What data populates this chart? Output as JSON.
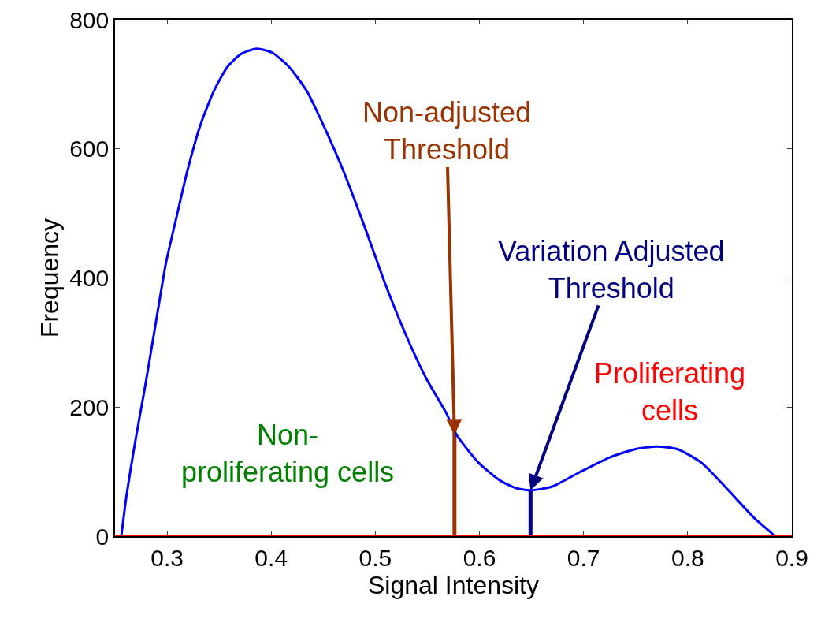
{
  "chart_data": {
    "type": "line",
    "xlabel": "Signal Intensity",
    "ylabel": "Frequency",
    "xlim": [
      0.25,
      0.9
    ],
    "xticks": [
      0.3,
      0.4,
      0.5,
      0.6,
      0.7,
      0.8,
      0.9
    ],
    "ylim": [
      0,
      800
    ],
    "yticks": [
      0,
      200,
      400,
      600,
      800
    ],
    "grid": false,
    "marker": "none",
    "line_style": "solid",
    "series": [
      {
        "color": "#0000ff",
        "x": [
          0.256,
          0.261,
          0.269,
          0.279,
          0.289,
          0.299,
          0.309,
          0.319,
          0.332,
          0.345,
          0.358,
          0.371,
          0.386,
          0.401,
          0.417,
          0.434,
          0.45,
          0.47,
          0.49,
          0.509,
          0.529,
          0.549,
          0.568,
          0.578,
          0.599,
          0.619,
          0.634,
          0.649,
          0.67,
          0.695,
          0.725,
          0.75,
          0.77,
          0.79,
          0.813,
          0.838,
          0.864,
          0.881,
          0.883
        ],
        "values": [
          0,
          63,
          143,
          233,
          329,
          424,
          494,
          563,
          637,
          690,
          727,
          747,
          755,
          749,
          727,
          690,
          637,
          563,
          478,
          393,
          313,
          244,
          191,
          157,
          114,
          87,
          75,
          71,
          77,
          98,
          122,
          135,
          139,
          135,
          114,
          73,
          28,
          4,
          0
        ]
      }
    ],
    "ref_lines": [
      {
        "axis": "y",
        "value": 0,
        "color": "#ff0000"
      },
      {
        "axis": "x",
        "value": 0.576,
        "color": "#993300"
      },
      {
        "axis": "x",
        "value": 0.649,
        "color": "#000080"
      }
    ],
    "annotations": [
      {
        "text": "Non-adjusted\nThreshold",
        "x": 0.576,
        "y": 157
      },
      {
        "text": "Variation Adjusted\nThreshold",
        "x": 0.649,
        "y": 71
      },
      "Non-\nproliferating cells",
      "Proliferating\ncells"
    ]
  }
}
